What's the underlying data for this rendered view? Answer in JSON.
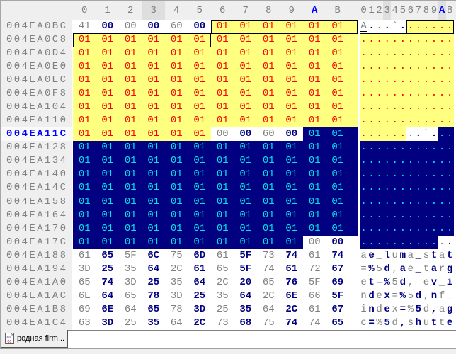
{
  "app": "hex-editor",
  "colors": {
    "panel_bg": "#EFEFEF",
    "header_highlight_bg": "#DEDEDE",
    "content_bg": "#FFFFFF",
    "highlight_yellow": "#FFFF80",
    "selection_navy": "#000080",
    "byte_even_gray": "#808080",
    "byte_odd_navy": "#000080",
    "highlight_text_red": "#FF0000",
    "selection_text_cyan": "#00E6E6",
    "current_position_blue": "#0000FF",
    "block_outline": "#000000"
  },
  "hex_header": {
    "cols": [
      "0",
      "1",
      "2",
      "3",
      "4",
      "5",
      "6",
      "7",
      "8",
      "9",
      "A",
      "B"
    ],
    "hover_col_index": 3,
    "active_col_index": 10
  },
  "ascii_header": {
    "chars": "0123456789AB",
    "hover_index": 3,
    "active_index": 10
  },
  "current_row_index": 8,
  "rows": [
    {
      "addr": "004EA0BC",
      "bytes": "41 00 00 00 60 00 01 01 01 01 01 01",
      "ascii": "A...`.......",
      "bg": "wwwwwwyyyyyy",
      "current": false
    },
    {
      "addr": "004EA0C8",
      "bytes": "01 01 01 01 01 01 01 01 01 01 01 01",
      "ascii": "............",
      "bg": "yyyyyyyyyyyy",
      "current": false
    },
    {
      "addr": "004EA0D4",
      "bytes": "01 01 01 01 01 01 01 01 01 01 01 01",
      "ascii": "............",
      "bg": "yyyyyyyyyyyy",
      "current": false
    },
    {
      "addr": "004EA0E0",
      "bytes": "01 01 01 01 01 01 01 01 01 01 01 01",
      "ascii": "............",
      "bg": "yyyyyyyyyyyy",
      "current": false
    },
    {
      "addr": "004EA0EC",
      "bytes": "01 01 01 01 01 01 01 01 01 01 01 01",
      "ascii": "............",
      "bg": "yyyyyyyyyyyy",
      "current": false
    },
    {
      "addr": "004EA0F8",
      "bytes": "01 01 01 01 01 01 01 01 01 01 01 01",
      "ascii": "............",
      "bg": "yyyyyyyyyyyy",
      "current": false
    },
    {
      "addr": "004EA104",
      "bytes": "01 01 01 01 01 01 01 01 01 01 01 01",
      "ascii": "............",
      "bg": "yyyyyyyyyyyy",
      "current": false
    },
    {
      "addr": "004EA110",
      "bytes": "01 01 01 01 01 01 01 01 01 01 01 01",
      "ascii": "............",
      "bg": "yyyyyyyyyyyy",
      "current": false
    },
    {
      "addr": "004EA11C",
      "bytes": "01 01 01 01 01 01 00 00 60 00 01 01",
      "ascii": "........`...",
      "bg": "yyyyyywwwwss",
      "current": true
    },
    {
      "addr": "004EA128",
      "bytes": "01 01 01 01 01 01 01 01 01 01 01 01",
      "ascii": "............",
      "bg": "ssssssssssss",
      "current": false
    },
    {
      "addr": "004EA134",
      "bytes": "01 01 01 01 01 01 01 01 01 01 01 01",
      "ascii": "............",
      "bg": "ssssssssssss",
      "current": false
    },
    {
      "addr": "004EA140",
      "bytes": "01 01 01 01 01 01 01 01 01 01 01 01",
      "ascii": "............",
      "bg": "ssssssssssss",
      "current": false
    },
    {
      "addr": "004EA14C",
      "bytes": "01 01 01 01 01 01 01 01 01 01 01 01",
      "ascii": "............",
      "bg": "ssssssssssss",
      "current": false
    },
    {
      "addr": "004EA158",
      "bytes": "01 01 01 01 01 01 01 01 01 01 01 01",
      "ascii": "............",
      "bg": "ssssssssssss",
      "current": false
    },
    {
      "addr": "004EA164",
      "bytes": "01 01 01 01 01 01 01 01 01 01 01 01",
      "ascii": "............",
      "bg": "ssssssssssss",
      "current": false
    },
    {
      "addr": "004EA170",
      "bytes": "01 01 01 01 01 01 01 01 01 01 01 01",
      "ascii": "............",
      "bg": "ssssssssssss",
      "current": false
    },
    {
      "addr": "004EA17C",
      "bytes": "01 01 01 01 01 01 01 01 01 01 00 00",
      "ascii": "............",
      "bg": "ssssssssssww",
      "current": false
    },
    {
      "addr": "004EA188",
      "bytes": "61 65 5F 6C 75 6D 61 5F 73 74 61 74",
      "ascii": "ae_luma_stat",
      "bg": "wwwwwwwwwwww",
      "current": false
    },
    {
      "addr": "004EA194",
      "bytes": "3D 25 35 64 2C 61 65 5F 74 61 72 67",
      "ascii": "=%5d,ae_targ",
      "bg": "wwwwwwwwwwww",
      "current": false
    },
    {
      "addr": "004EA1A0",
      "bytes": "65 74 3D 25 35 64 2C 20 65 76 5F 69",
      "ascii": "et=%5d, ev_i",
      "bg": "wwwwwwwwwwww",
      "current": false
    },
    {
      "addr": "004EA1AC",
      "bytes": "6E 64 65 78 3D 25 35 64 2C 6E 66 5F",
      "ascii": "ndex=%5d,nf_",
      "bg": "wwwwwwwwwwww",
      "current": false
    },
    {
      "addr": "004EA1B8",
      "bytes": "69 6E 64 65 78 3D 25 35 64 2C 61 67",
      "ascii": "index=%5d,ag",
      "bg": "wwwwwwwwwwww",
      "current": false
    },
    {
      "addr": "004EA1C4",
      "bytes": "63 3D 25 35 64 2C 73 68 75 74 74 65",
      "ascii": "c=%5d,shutte",
      "bg": "wwwwwwwwwwww",
      "current": false
    }
  ],
  "block_outlines": [
    {
      "row": 0,
      "from": 6,
      "to": 11
    },
    {
      "row": 1,
      "from": 0,
      "to": 5
    }
  ],
  "text_cursor": {
    "row": 0,
    "col": 0
  },
  "tab_bar": {
    "active_tab": {
      "label": "родная firm...",
      "icon": "binary-file-icon"
    }
  }
}
